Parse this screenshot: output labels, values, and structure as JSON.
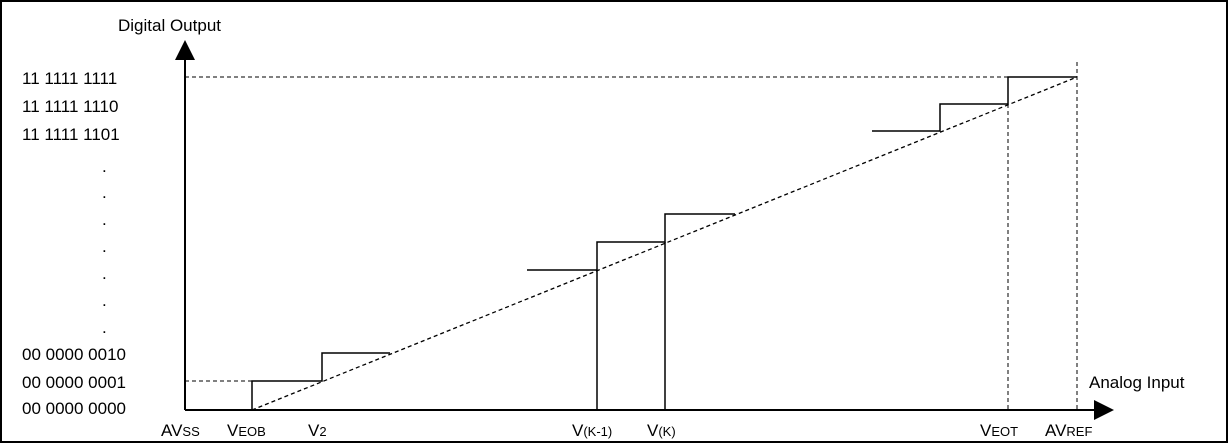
{
  "diagram": {
    "y_axis_title": "Digital Output",
    "x_axis_title": "Analog Input",
    "y_codes": {
      "c3FF": "11 1111 1111",
      "c3FE": "11 1111 1110",
      "c3FD": "11 1111 1101",
      "c002": "00 0000 0010",
      "c001": "00 0000 0001",
      "c000": "00 0000 0000"
    },
    "dots": ".",
    "x_labels": {
      "avss": {
        "main": "AV",
        "sub": "SS"
      },
      "veob": {
        "main": "V",
        "sub": "EOB"
      },
      "v2": {
        "main": "V",
        "sub": "2"
      },
      "vk1": {
        "main": "V",
        "sub": "(K-1)"
      },
      "vk": {
        "main": "V",
        "sub": "(K)"
      },
      "veot": {
        "main": "V",
        "sub": "EOT"
      },
      "avref": {
        "main": "AV",
        "sub": "REF"
      }
    }
  }
}
